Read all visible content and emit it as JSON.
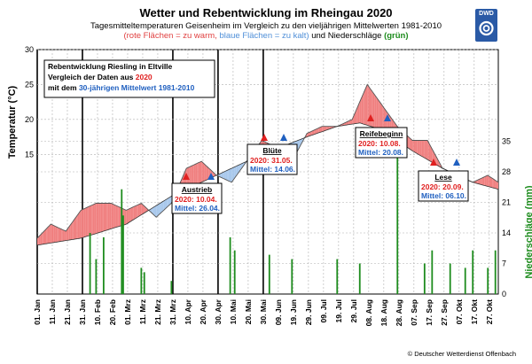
{
  "title": "Wetter und Rebentwicklung im Rheingau 2020",
  "subtitle": {
    "line1": "Tagesmitteltemperaturen Geisenheim im Vergleich zu den vieljährigen Mittelwerten 1981-2010",
    "warm": "(rote Flächen = zu warm,",
    "cold": "blaue Flächen = zu kalt)",
    "and": "und Niederschläge",
    "green": "(grün)"
  },
  "logo_text": "DWD",
  "credit": "© Deutscher Wetterdienst Offenbach",
  "colors": {
    "warm": "#f08080",
    "cold": "#a8c8ec",
    "temp_line": "#555555",
    "precip": "#1e8c1e",
    "marker_2020": "#e02020",
    "marker_mean": "#2060c0",
    "grid": "#b0b0b0"
  },
  "legend_box": {
    "line1": "Rebentwicklung Riesling in Eltville",
    "line2_prefix": "Vergleich der Daten aus",
    "line2_year": "2020",
    "line3_prefix": "mit dem",
    "line3_period": "30-jährigen Mittelwert 1981-2010"
  },
  "phenology": [
    {
      "name": "Austrieb",
      "label_2020": "2020:",
      "value_2020": "10.04.",
      "label_mean": "Mittel:",
      "value_mean": "26.04."
    },
    {
      "name": "Blüte",
      "label_2020": "2020:",
      "value_2020": "31.05.",
      "label_mean": "Mittel:",
      "value_mean": "14.06."
    },
    {
      "name": "Reifebeginn",
      "label_2020": "2020:",
      "value_2020": "10.08.",
      "label_mean": "Mittel:",
      "value_mean": "20.08."
    },
    {
      "name": "Lese",
      "label_2020": "2020:",
      "value_2020": "20.09.",
      "label_mean": "Mittel:",
      "value_mean": "06.10."
    }
  ],
  "chart_data": {
    "type": "area",
    "ylabel_left": "Temperatur (°C)",
    "ylabel_right": "Niederschläge (mm)",
    "y_left_ticks": [
      "30",
      "25",
      "20",
      "15"
    ],
    "y_left_range": [
      -5,
      30
    ],
    "y_right_ticks": [
      "35",
      "28",
      "21",
      "14",
      "7",
      "0"
    ],
    "y_right_range": [
      0,
      56
    ],
    "x_ticks": [
      "01. Jan",
      "11. Jan",
      "21. Jan",
      "31. Jan",
      "10. Feb",
      "20. Feb",
      "01. Mrz",
      "11. Mrz",
      "21. Mrz",
      "31. Mrz",
      "10. Apr",
      "20. Apr",
      "30. Apr",
      "10. Mai",
      "20. Mai",
      "30. Mai",
      "09. Jun",
      "19. Jun",
      "29. Jun",
      "09. Jul",
      "19. Jul",
      "29. Jul",
      "08. Aug",
      "18. Aug",
      "28. Aug",
      "07. Sep",
      "17. Sep",
      "27. Sep",
      "07. Okt",
      "17. Okt",
      "27. Okt"
    ],
    "series": [
      {
        "name": "Tagesmitteltemperatur 2020",
        "x_day": [
          1,
          10,
          20,
          30,
          40,
          50,
          60,
          70,
          80,
          90,
          100,
          110,
          120,
          130,
          140,
          150,
          160,
          170,
          180,
          190,
          200,
          210,
          220,
          230,
          240,
          250,
          260,
          270,
          280,
          290,
          300,
          307
        ],
        "values": [
          3,
          5,
          4,
          7,
          8,
          8,
          7,
          8,
          6,
          8,
          13,
          14,
          12,
          11,
          14,
          17,
          16,
          14,
          18,
          19,
          19,
          20,
          25,
          22,
          19,
          17,
          17,
          13,
          12,
          11,
          12,
          11
        ]
      },
      {
        "name": "Mittelwert 1981-2010",
        "x_day": [
          1,
          30,
          60,
          90,
          120,
          150,
          180,
          200,
          215,
          230,
          250,
          270,
          290,
          307
        ],
        "values": [
          2,
          3,
          5,
          9,
          12,
          15,
          17.5,
          19,
          19.5,
          18.5,
          15.5,
          13,
          11,
          10
        ]
      },
      {
        "name": "Niederschlag 2020",
        "unit": "mm",
        "x_day": [
          36,
          40,
          45,
          57,
          58,
          70,
          72,
          90,
          129,
          132,
          155,
          170,
          200,
          215,
          240,
          258,
          263,
          275,
          285,
          290,
          300,
          305
        ],
        "values": [
          14,
          8,
          13,
          24,
          18,
          6,
          5,
          3,
          13,
          10,
          9,
          8,
          8,
          7,
          35,
          7,
          10,
          7,
          6,
          10,
          6,
          10
        ]
      }
    ],
    "grid": true
  }
}
